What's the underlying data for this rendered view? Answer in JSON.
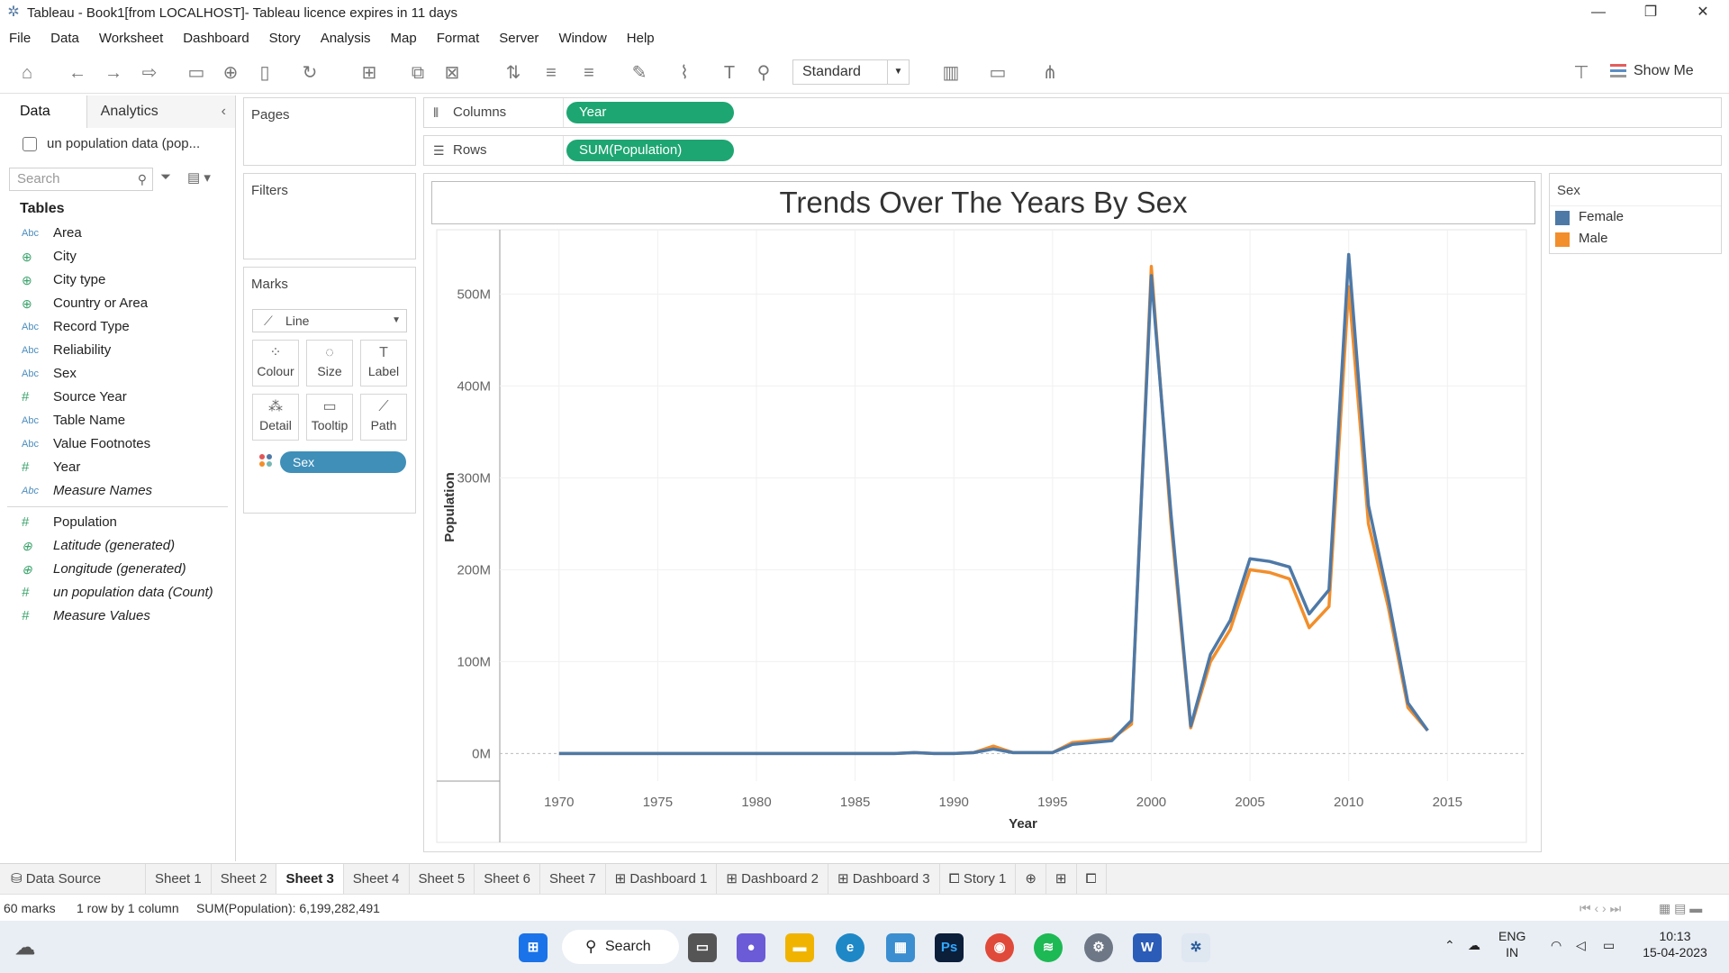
{
  "window": {
    "title": "Tableau - Book1[from LOCALHOST]- Tableau licence expires in 11 days"
  },
  "menu": [
    "File",
    "Data",
    "Worksheet",
    "Dashboard",
    "Story",
    "Analysis",
    "Map",
    "Format",
    "Server",
    "Window",
    "Help"
  ],
  "toolbar": {
    "fit": "Standard",
    "show_me": "Show Me"
  },
  "data_pane": {
    "tab_data": "Data",
    "tab_analytics": "Analytics",
    "source": "un population data (pop...",
    "search_placeholder": "Search",
    "tables_heading": "Tables",
    "dimensions": [
      {
        "type": "Abc",
        "name": "Area"
      },
      {
        "type": "geo",
        "name": "City"
      },
      {
        "type": "geo",
        "name": "City type"
      },
      {
        "type": "geo",
        "name": "Country or Area"
      },
      {
        "type": "Abc",
        "name": "Record Type"
      },
      {
        "type": "Abc",
        "name": "Reliability"
      },
      {
        "type": "Abc",
        "name": "Sex"
      },
      {
        "type": "#",
        "name": "Source Year"
      },
      {
        "type": "Abc",
        "name": "Table Name"
      },
      {
        "type": "Abc",
        "name": "Value Footnotes"
      },
      {
        "type": "#",
        "name": "Year"
      },
      {
        "type": "Abc",
        "name": "Measure Names"
      }
    ],
    "measures": [
      {
        "type": "#",
        "name": "Population"
      },
      {
        "type": "geo",
        "name": "Latitude (generated)"
      },
      {
        "type": "geo",
        "name": "Longitude (generated)"
      },
      {
        "type": "#",
        "name": "un population data (Count)"
      },
      {
        "type": "#",
        "name": "Measure Values"
      }
    ]
  },
  "cards": {
    "pages": "Pages",
    "filters": "Filters",
    "marks": "Marks",
    "mark_type": "Line",
    "buttons": [
      "Colour",
      "Size",
      "Label",
      "Detail",
      "Tooltip",
      "Path"
    ],
    "colour_pill": "Sex"
  },
  "shelves": {
    "columns_label": "Columns",
    "columns_pill": "Year",
    "rows_label": "Rows",
    "rows_pill": "SUM(Population)"
  },
  "legend": {
    "title": "Sex",
    "items": [
      {
        "name": "Female",
        "color": "#4e79a7"
      },
      {
        "name": "Male",
        "color": "#f28e2b"
      }
    ]
  },
  "chart_data": {
    "type": "line",
    "title": "Trends Over The Years By Sex",
    "xlabel": "Year",
    "ylabel": "Population",
    "xlim": [
      1967,
      2019
    ],
    "ylim": [
      -30,
      570
    ],
    "x_ticks": [
      1970,
      1975,
      1980,
      1985,
      1990,
      1995,
      2000,
      2005,
      2010,
      2015
    ],
    "y_ticks": [
      {
        "v": 0,
        "label": "0M"
      },
      {
        "v": 100,
        "label": "100M"
      },
      {
        "v": 200,
        "label": "200M"
      },
      {
        "v": 300,
        "label": "300M"
      },
      {
        "v": 400,
        "label": "400M"
      },
      {
        "v": 500,
        "label": "500M"
      }
    ],
    "y_unit": "M",
    "series": [
      {
        "name": "Male",
        "color": "#f28e2b",
        "points": [
          [
            1970,
            0
          ],
          [
            1975,
            0
          ],
          [
            1980,
            0
          ],
          [
            1985,
            0
          ],
          [
            1987,
            0
          ],
          [
            1988,
            1
          ],
          [
            1989,
            0
          ],
          [
            1990,
            0
          ],
          [
            1991,
            1
          ],
          [
            1992,
            8
          ],
          [
            1993,
            1
          ],
          [
            1995,
            1
          ],
          [
            1996,
            12
          ],
          [
            1998,
            16
          ],
          [
            1999,
            32
          ],
          [
            2000,
            530
          ],
          [
            2001,
            250
          ],
          [
            2002,
            28
          ],
          [
            2003,
            100
          ],
          [
            2004,
            135
          ],
          [
            2005,
            200
          ],
          [
            2006,
            197
          ],
          [
            2007,
            190
          ],
          [
            2008,
            137
          ],
          [
            2009,
            160
          ],
          [
            2010,
            508
          ],
          [
            2011,
            250
          ],
          [
            2012,
            160
          ],
          [
            2013,
            50
          ],
          [
            2014,
            25
          ]
        ]
      },
      {
        "name": "Female",
        "color": "#4e79a7",
        "points": [
          [
            1970,
            0
          ],
          [
            1975,
            0
          ],
          [
            1980,
            0
          ],
          [
            1985,
            0
          ],
          [
            1987,
            0
          ],
          [
            1988,
            1
          ],
          [
            1989,
            0
          ],
          [
            1990,
            0
          ],
          [
            1991,
            1
          ],
          [
            1992,
            5
          ],
          [
            1993,
            1
          ],
          [
            1995,
            1
          ],
          [
            1996,
            10
          ],
          [
            1998,
            14
          ],
          [
            1999,
            36
          ],
          [
            2000,
            520
          ],
          [
            2001,
            260
          ],
          [
            2002,
            30
          ],
          [
            2003,
            108
          ],
          [
            2004,
            145
          ],
          [
            2005,
            212
          ],
          [
            2006,
            209
          ],
          [
            2007,
            203
          ],
          [
            2008,
            152
          ],
          [
            2009,
            178
          ],
          [
            2010,
            543
          ],
          [
            2011,
            270
          ],
          [
            2012,
            170
          ],
          [
            2013,
            55
          ],
          [
            2014,
            25
          ]
        ]
      }
    ]
  },
  "sheet_tabs": [
    "Data Source",
    "Sheet 1",
    "Sheet 2",
    "Sheet 3",
    "Sheet 4",
    "Sheet 5",
    "Sheet 6",
    "Sheet 7",
    "Dashboard 1",
    "Dashboard 2",
    "Dashboard 3",
    "Story 1"
  ],
  "active_tab": "Sheet 3",
  "status": {
    "marks": "60 marks",
    "dims": "1 row by 1 column",
    "sum": "SUM(Population): 6,199,282,491"
  },
  "taskbar": {
    "search": "Search",
    "lang1": "ENG",
    "lang2": "IN",
    "time": "10:13",
    "date": "15-04-2023"
  }
}
